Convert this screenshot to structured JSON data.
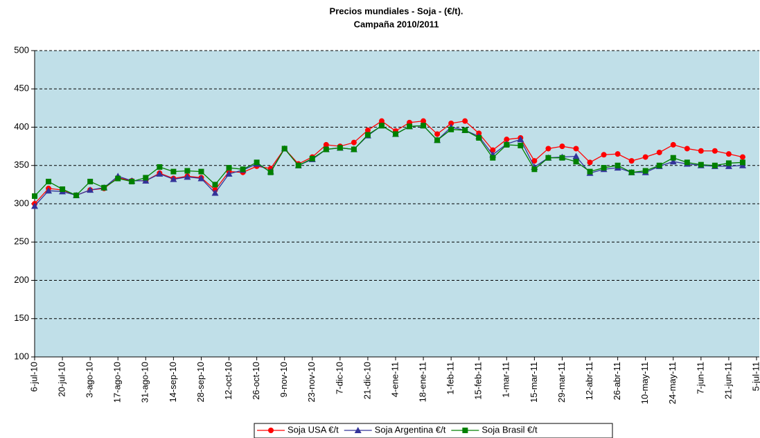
{
  "chart_data": {
    "type": "line",
    "title": "Precios mundiales - Soja - (€/t).",
    "subtitle": "Campaña 2010/2011",
    "categories": [
      "6-jul-10",
      null,
      "20-jul-10",
      null,
      "3-ago-10",
      null,
      "17-ago-10",
      null,
      "31-ago-10",
      null,
      "14-sep-10",
      null,
      "28-sep-10",
      null,
      "12-oct-10",
      null,
      "26-oct-10",
      null,
      "9-nov-10",
      null,
      "23-nov-10",
      null,
      "7-dic-10",
      null,
      "21-dic-10",
      null,
      "4-ene-11",
      null,
      "18-ene-11",
      null,
      "1-feb-11",
      null,
      "15-feb-11",
      null,
      "1-mar-11",
      null,
      "15-mar-11",
      null,
      "29-mar-11",
      null,
      "12-abr-11",
      null,
      "26-abr-11",
      null,
      "10-may-11",
      null,
      "24-may-11",
      null,
      "7-jun-11",
      null,
      "21-jun-11",
      null,
      "5-jul-11"
    ],
    "series": [
      {
        "name": "Soja USA €/t",
        "color": "#ff0000",
        "marker": "circle",
        "values": [
          300,
          320,
          318,
          311,
          318,
          320,
          334,
          330,
          330,
          340,
          333,
          336,
          334,
          318,
          342,
          341,
          349,
          346,
          372,
          352,
          361,
          377,
          375,
          380,
          396,
          408,
          395,
          406,
          408,
          391,
          405,
          408,
          392,
          370,
          384,
          386,
          356,
          372,
          375,
          372,
          354,
          364,
          365,
          356,
          361,
          367,
          377,
          372,
          369,
          369,
          365,
          361,
          null
        ]
      },
      {
        "name": "Soja Argentina €/t",
        "color": "#333399",
        "marker": "triangle",
        "values": [
          297,
          317,
          316,
          311,
          318,
          321,
          336,
          330,
          330,
          339,
          332,
          335,
          333,
          314,
          339,
          344,
          352,
          342,
          372,
          350,
          358,
          371,
          373,
          371,
          389,
          402,
          391,
          401,
          402,
          383,
          400,
          396,
          388,
          364,
          378,
          384,
          348,
          360,
          361,
          362,
          340,
          345,
          347,
          341,
          341,
          349,
          355,
          352,
          350,
          349,
          349,
          350,
          null
        ]
      },
      {
        "name": "Soja Brasil €/t",
        "color": "#008000",
        "marker": "square",
        "values": [
          310,
          329,
          319,
          311,
          329,
          321,
          333,
          329,
          334,
          348,
          342,
          343,
          342,
          325,
          347,
          345,
          354,
          341,
          372,
          350,
          359,
          371,
          373,
          371,
          390,
          402,
          391,
          401,
          402,
          383,
          397,
          396,
          386,
          360,
          377,
          376,
          345,
          360,
          360,
          355,
          342,
          347,
          350,
          341,
          343,
          350,
          360,
          354,
          351,
          350,
          353,
          354,
          null
        ]
      }
    ],
    "ylim": [
      100,
      500
    ],
    "yticks": [
      100,
      150,
      200,
      250,
      300,
      350,
      400,
      450,
      500
    ],
    "grid": true,
    "plot_background": "#c0dfe8",
    "legend": "bottom"
  }
}
